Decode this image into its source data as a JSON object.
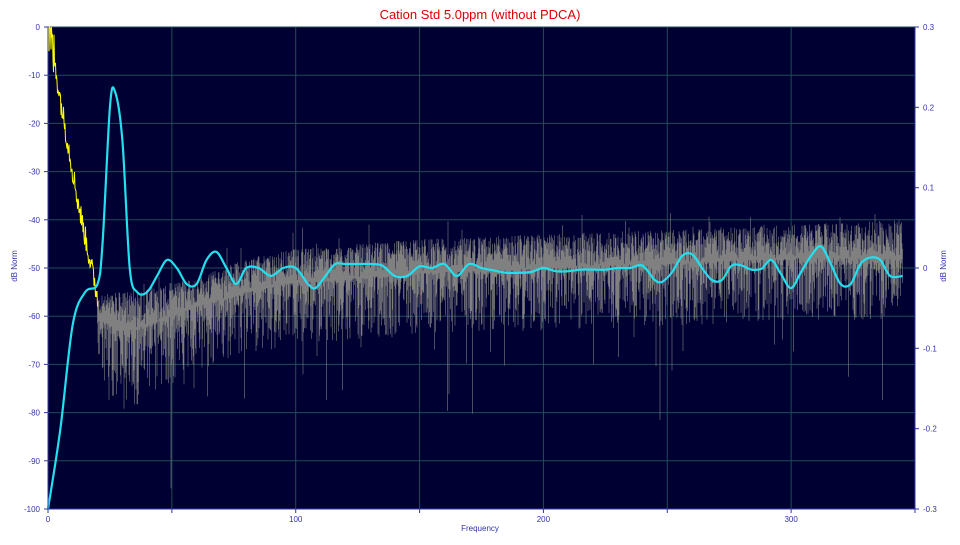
{
  "chart_data": {
    "type": "line",
    "title": "Cation Std 5.0ppm  (without PDCA)",
    "xlabel": "Frequency",
    "ylabel_left": "dB Norm",
    "ylabel_right": "dB Norm",
    "xlim": [
      0,
      350
    ],
    "ylim_left": [
      -100,
      0
    ],
    "ylim_right": [
      -0.3,
      0.3
    ],
    "x_ticks": [
      "0",
      "100",
      "200",
      "300"
    ],
    "y_ticks_left": [
      "0",
      "-10",
      "-20",
      "-30",
      "-40",
      "-50",
      "-60",
      "-70",
      "-80",
      "-90",
      "-100"
    ],
    "y_ticks_right": [
      "0.3",
      "0.2",
      "0.1",
      "0",
      "-0.1",
      "-0.2",
      "-0.3"
    ],
    "grid": true,
    "colors": {
      "plot_background": "#000033",
      "grid": "#1e4d55",
      "title": "#dd0000",
      "axis_text": "#3333aa",
      "noise_series": "#808080",
      "yellow_series": "#ffff00",
      "cyan_series": "#22e0ee"
    },
    "series": [
      {
        "color": "#ffff00",
        "axis": "left",
        "x": [
          0,
          2,
          4,
          6,
          8,
          10,
          12,
          14,
          16,
          18,
          20
        ],
        "y": [
          0,
          -5,
          -12,
          -18,
          -24,
          -30,
          -36,
          -41,
          -46,
          -51,
          -56
        ]
      },
      {
        "color": "#808080",
        "axis": "left",
        "envelope": {
          "x": [
            20,
            25,
            30,
            40,
            60,
            80,
            100,
            150,
            200,
            250,
            300,
            345
          ],
          "upper": [
            -56,
            -55,
            -55,
            -54,
            -52,
            -48,
            -46,
            -44,
            -43,
            -42,
            -41,
            -40
          ],
          "mean": [
            -60,
            -62,
            -63,
            -62,
            -58,
            -55,
            -53,
            -51,
            -50,
            -49,
            -48,
            -48
          ],
          "lower": [
            -70,
            -78,
            -80,
            -78,
            -72,
            -68,
            -66,
            -64,
            -63,
            -62,
            -61,
            -61
          ]
        }
      },
      {
        "color": "#22e0ee",
        "axis": "right",
        "x": [
          0,
          5,
          10,
          15,
          20,
          22,
          25,
          27,
          30,
          33,
          36,
          40,
          44,
          48,
          52,
          56,
          60,
          64,
          68,
          72,
          76,
          80,
          85,
          90,
          95,
          100,
          105,
          108,
          112,
          116,
          120,
          125,
          130,
          135,
          140,
          145,
          150,
          155,
          160,
          165,
          170,
          175,
          180,
          185,
          190,
          195,
          200,
          205,
          210,
          215,
          220,
          225,
          230,
          235,
          240,
          245,
          248,
          252,
          256,
          260,
          264,
          268,
          272,
          276,
          280,
          284,
          288,
          292,
          296,
          300,
          304,
          308,
          312,
          316,
          320,
          324,
          328,
          332,
          336,
          340,
          345
        ],
        "y": [
          -0.3,
          -0.2,
          -0.07,
          -0.03,
          -0.02,
          0.03,
          0.2,
          0.22,
          0.16,
          0.0,
          -0.03,
          -0.03,
          -0.01,
          0.01,
          0.0,
          -0.02,
          -0.02,
          0.01,
          0.02,
          0.0,
          -0.02,
          0.0,
          0.0,
          -0.01,
          0.0,
          0.0,
          -0.02,
          -0.025,
          -0.01,
          0.005,
          0.005,
          0.005,
          0.005,
          0.003,
          -0.01,
          -0.01,
          0.002,
          0.0,
          0.005,
          -0.01,
          0.005,
          0.0,
          -0.003,
          -0.006,
          -0.006,
          -0.005,
          0.0,
          -0.004,
          -0.004,
          -0.002,
          -0.002,
          -0.002,
          0.0,
          0.0,
          0.003,
          -0.015,
          -0.017,
          -0.005,
          0.015,
          0.017,
          0.0,
          -0.015,
          -0.015,
          0.003,
          0.003,
          -0.002,
          -0.001,
          0.01,
          -0.008,
          -0.025,
          -0.005,
          0.015,
          0.027,
          0.005,
          -0.02,
          -0.02,
          0.005,
          0.013,
          0.01,
          -0.01,
          -0.01
        ]
      }
    ]
  }
}
